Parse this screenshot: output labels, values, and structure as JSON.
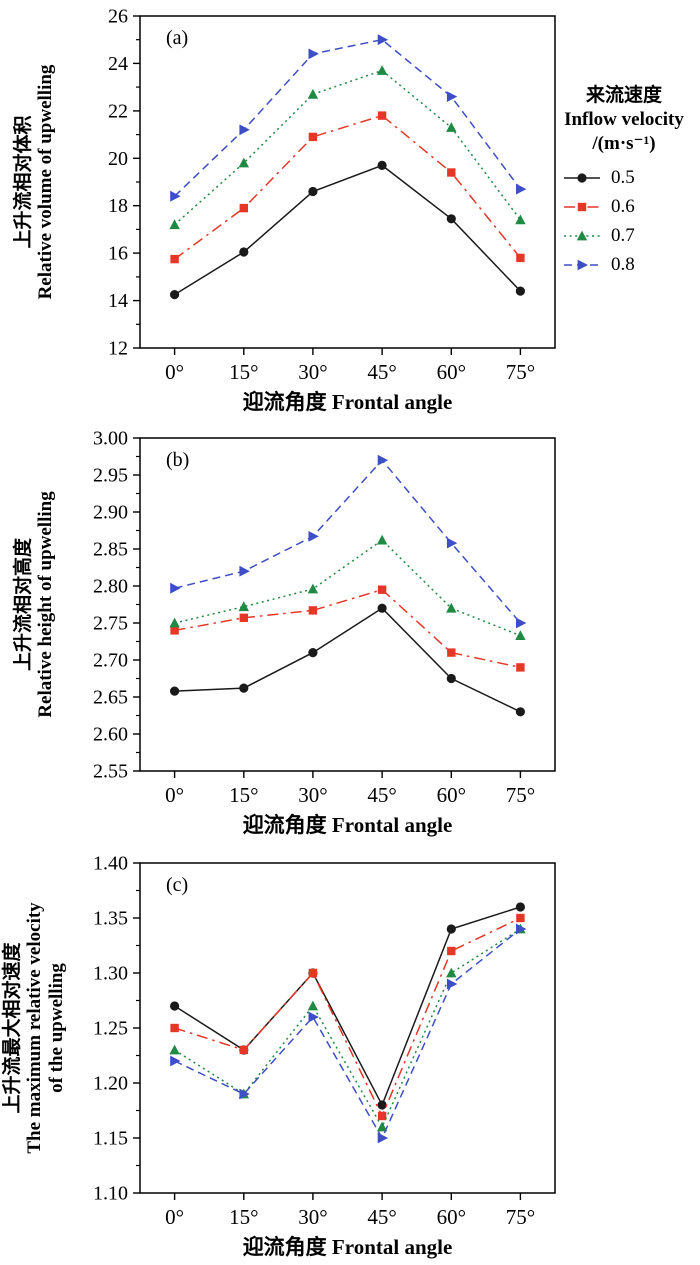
{
  "figure": {
    "panel_labels": [
      "(a)",
      "(b)",
      "(c)"
    ]
  },
  "legend": {
    "title_cn": "来流速度",
    "title_en": "Inflow velocity",
    "unit": "/(m·s⁻¹)",
    "position": "right-of-panel-a",
    "entries": [
      {
        "label": "0.5",
        "color": "#1a1a1a",
        "marker": "circle",
        "line": "solid"
      },
      {
        "label": "0.6",
        "color": "#e63726",
        "marker": "square",
        "line": "dashdot"
      },
      {
        "label": "0.7",
        "color": "#1f8a44",
        "marker": "triangle-up",
        "line": "dot"
      },
      {
        "label": "0.8",
        "color": "#3d4ec6",
        "marker": "triangle-right",
        "line": "dash"
      }
    ]
  },
  "chart_data": [
    {
      "type": "line",
      "panel_label": "(a)",
      "categories": [
        "0°",
        "15°",
        "30°",
        "45°",
        "60°",
        "75°"
      ],
      "xlabel": "迎流角度 Frontal angle",
      "ylabel_lines": [
        "上升流相对体积",
        "Relative volume of upwelling"
      ],
      "ylim": [
        12,
        26
      ],
      "yticks": [
        "12",
        "14",
        "16",
        "18",
        "20",
        "22",
        "24",
        "26"
      ],
      "grid": false,
      "legend_position": "right",
      "series": [
        {
          "name": "0.5",
          "values": [
            14.25,
            16.05,
            18.6,
            19.7,
            17.45,
            14.4
          ]
        },
        {
          "name": "0.6",
          "values": [
            15.75,
            17.9,
            20.9,
            21.8,
            19.4,
            15.8
          ]
        },
        {
          "name": "0.7",
          "values": [
            17.2,
            19.8,
            22.7,
            23.7,
            21.3,
            17.4
          ]
        },
        {
          "name": "0.8",
          "values": [
            18.4,
            21.2,
            24.4,
            25.0,
            22.6,
            18.7
          ]
        }
      ]
    },
    {
      "type": "line",
      "panel_label": "(b)",
      "categories": [
        "0°",
        "15°",
        "30°",
        "45°",
        "60°",
        "75°"
      ],
      "xlabel": "迎流角度 Frontal angle",
      "ylabel_lines": [
        "上升流相对高度",
        "Relative height of upwelling"
      ],
      "ylim": [
        2.55,
        3.0
      ],
      "yticks": [
        "2.55",
        "2.60",
        "2.65",
        "2.70",
        "2.75",
        "2.80",
        "2.85",
        "2.90",
        "2.95",
        "3.00"
      ],
      "grid": false,
      "series": [
        {
          "name": "0.5",
          "values": [
            2.658,
            2.662,
            2.71,
            2.77,
            2.675,
            2.63
          ]
        },
        {
          "name": "0.6",
          "values": [
            2.74,
            2.757,
            2.767,
            2.795,
            2.71,
            2.69
          ]
        },
        {
          "name": "0.7",
          "values": [
            2.75,
            2.772,
            2.796,
            2.862,
            2.77,
            2.733
          ]
        },
        {
          "name": "0.8",
          "values": [
            2.797,
            2.82,
            2.867,
            2.97,
            2.858,
            2.75
          ]
        }
      ]
    },
    {
      "type": "line",
      "panel_label": "(c)",
      "categories": [
        "0°",
        "15°",
        "30°",
        "45°",
        "60°",
        "75°"
      ],
      "xlabel": "迎流角度 Frontal angle",
      "ylabel_lines": [
        "上升流最大相对速度",
        "The maximum relative velocity",
        "of the upwelling"
      ],
      "ylim": [
        1.1,
        1.4
      ],
      "yticks": [
        "1.10",
        "1.15",
        "1.20",
        "1.25",
        "1.30",
        "1.35",
        "1.40"
      ],
      "grid": false,
      "series": [
        {
          "name": "0.5",
          "values": [
            1.27,
            1.23,
            1.3,
            1.18,
            1.34,
            1.36
          ]
        },
        {
          "name": "0.6",
          "values": [
            1.25,
            1.23,
            1.3,
            1.17,
            1.32,
            1.35
          ]
        },
        {
          "name": "0.7",
          "values": [
            1.23,
            1.19,
            1.27,
            1.16,
            1.3,
            1.34
          ]
        },
        {
          "name": "0.8",
          "values": [
            1.22,
            1.19,
            1.26,
            1.15,
            1.29,
            1.34
          ]
        }
      ]
    }
  ]
}
